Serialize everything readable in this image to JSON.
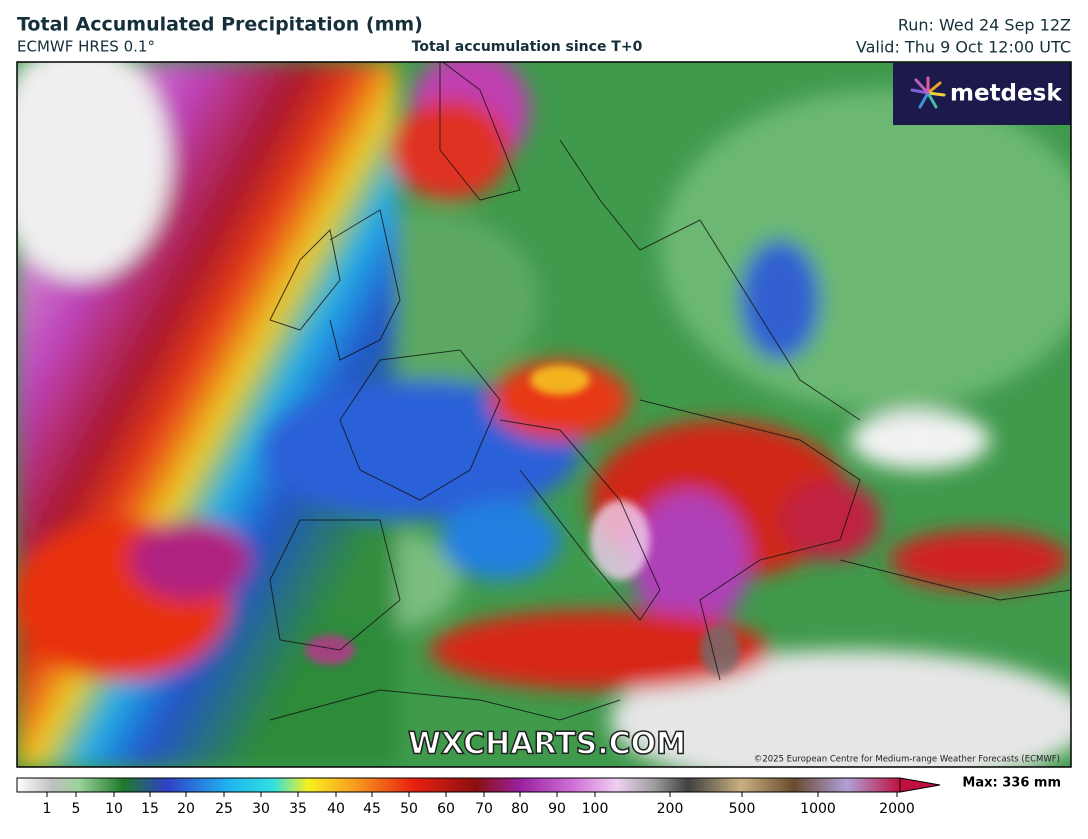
{
  "header": {
    "title": "Total Accumulated Precipitation (mm)",
    "model": "ECMWF HRES 0.1°",
    "subtitle": "Total accumulation since T+0",
    "run": "Run: Wed 24 Sep 12Z",
    "valid": "Valid: Thu 9 Oct 12:00 UTC"
  },
  "map": {
    "logo": "metdesk",
    "watermark": "WXCHARTS.COM",
    "copyright": "©2025 European Centre for Medium-range Weather Forecasts (ECMWF)"
  },
  "colorbar": {
    "labels": [
      "1",
      "5",
      "10",
      "15",
      "20",
      "25",
      "30",
      "35",
      "40",
      "45",
      "50",
      "60",
      "70",
      "80",
      "90",
      "100",
      "200",
      "500",
      "1000",
      "2000"
    ],
    "max": "Max: 336 mm"
  }
}
